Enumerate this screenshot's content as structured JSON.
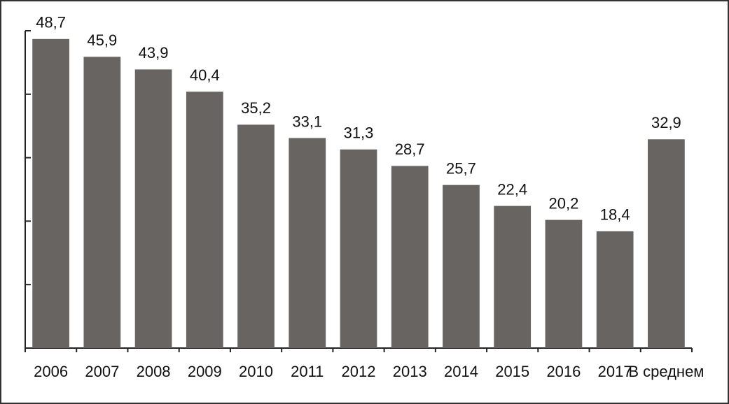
{
  "chart_data": {
    "type": "bar",
    "categories": [
      "2006",
      "2007",
      "2008",
      "2009",
      "2010",
      "2011",
      "2012",
      "2013",
      "2014",
      "2015",
      "2016",
      "2017",
      "В среднем"
    ],
    "values": [
      48.7,
      45.9,
      43.9,
      40.4,
      35.2,
      33.1,
      31.3,
      28.7,
      25.7,
      22.4,
      20.2,
      18.4,
      32.9
    ],
    "value_labels": [
      "48,7",
      "45,9",
      "43,9",
      "40,4",
      "35,2",
      "33,1",
      "31,3",
      "28,7",
      "25,7",
      "22,4",
      "20,2",
      "18,4",
      "32,9"
    ],
    "color": "#676462",
    "ylim": [
      0,
      50
    ],
    "yticks": [
      0,
      10,
      20,
      30,
      40,
      50
    ],
    "grid": false
  }
}
